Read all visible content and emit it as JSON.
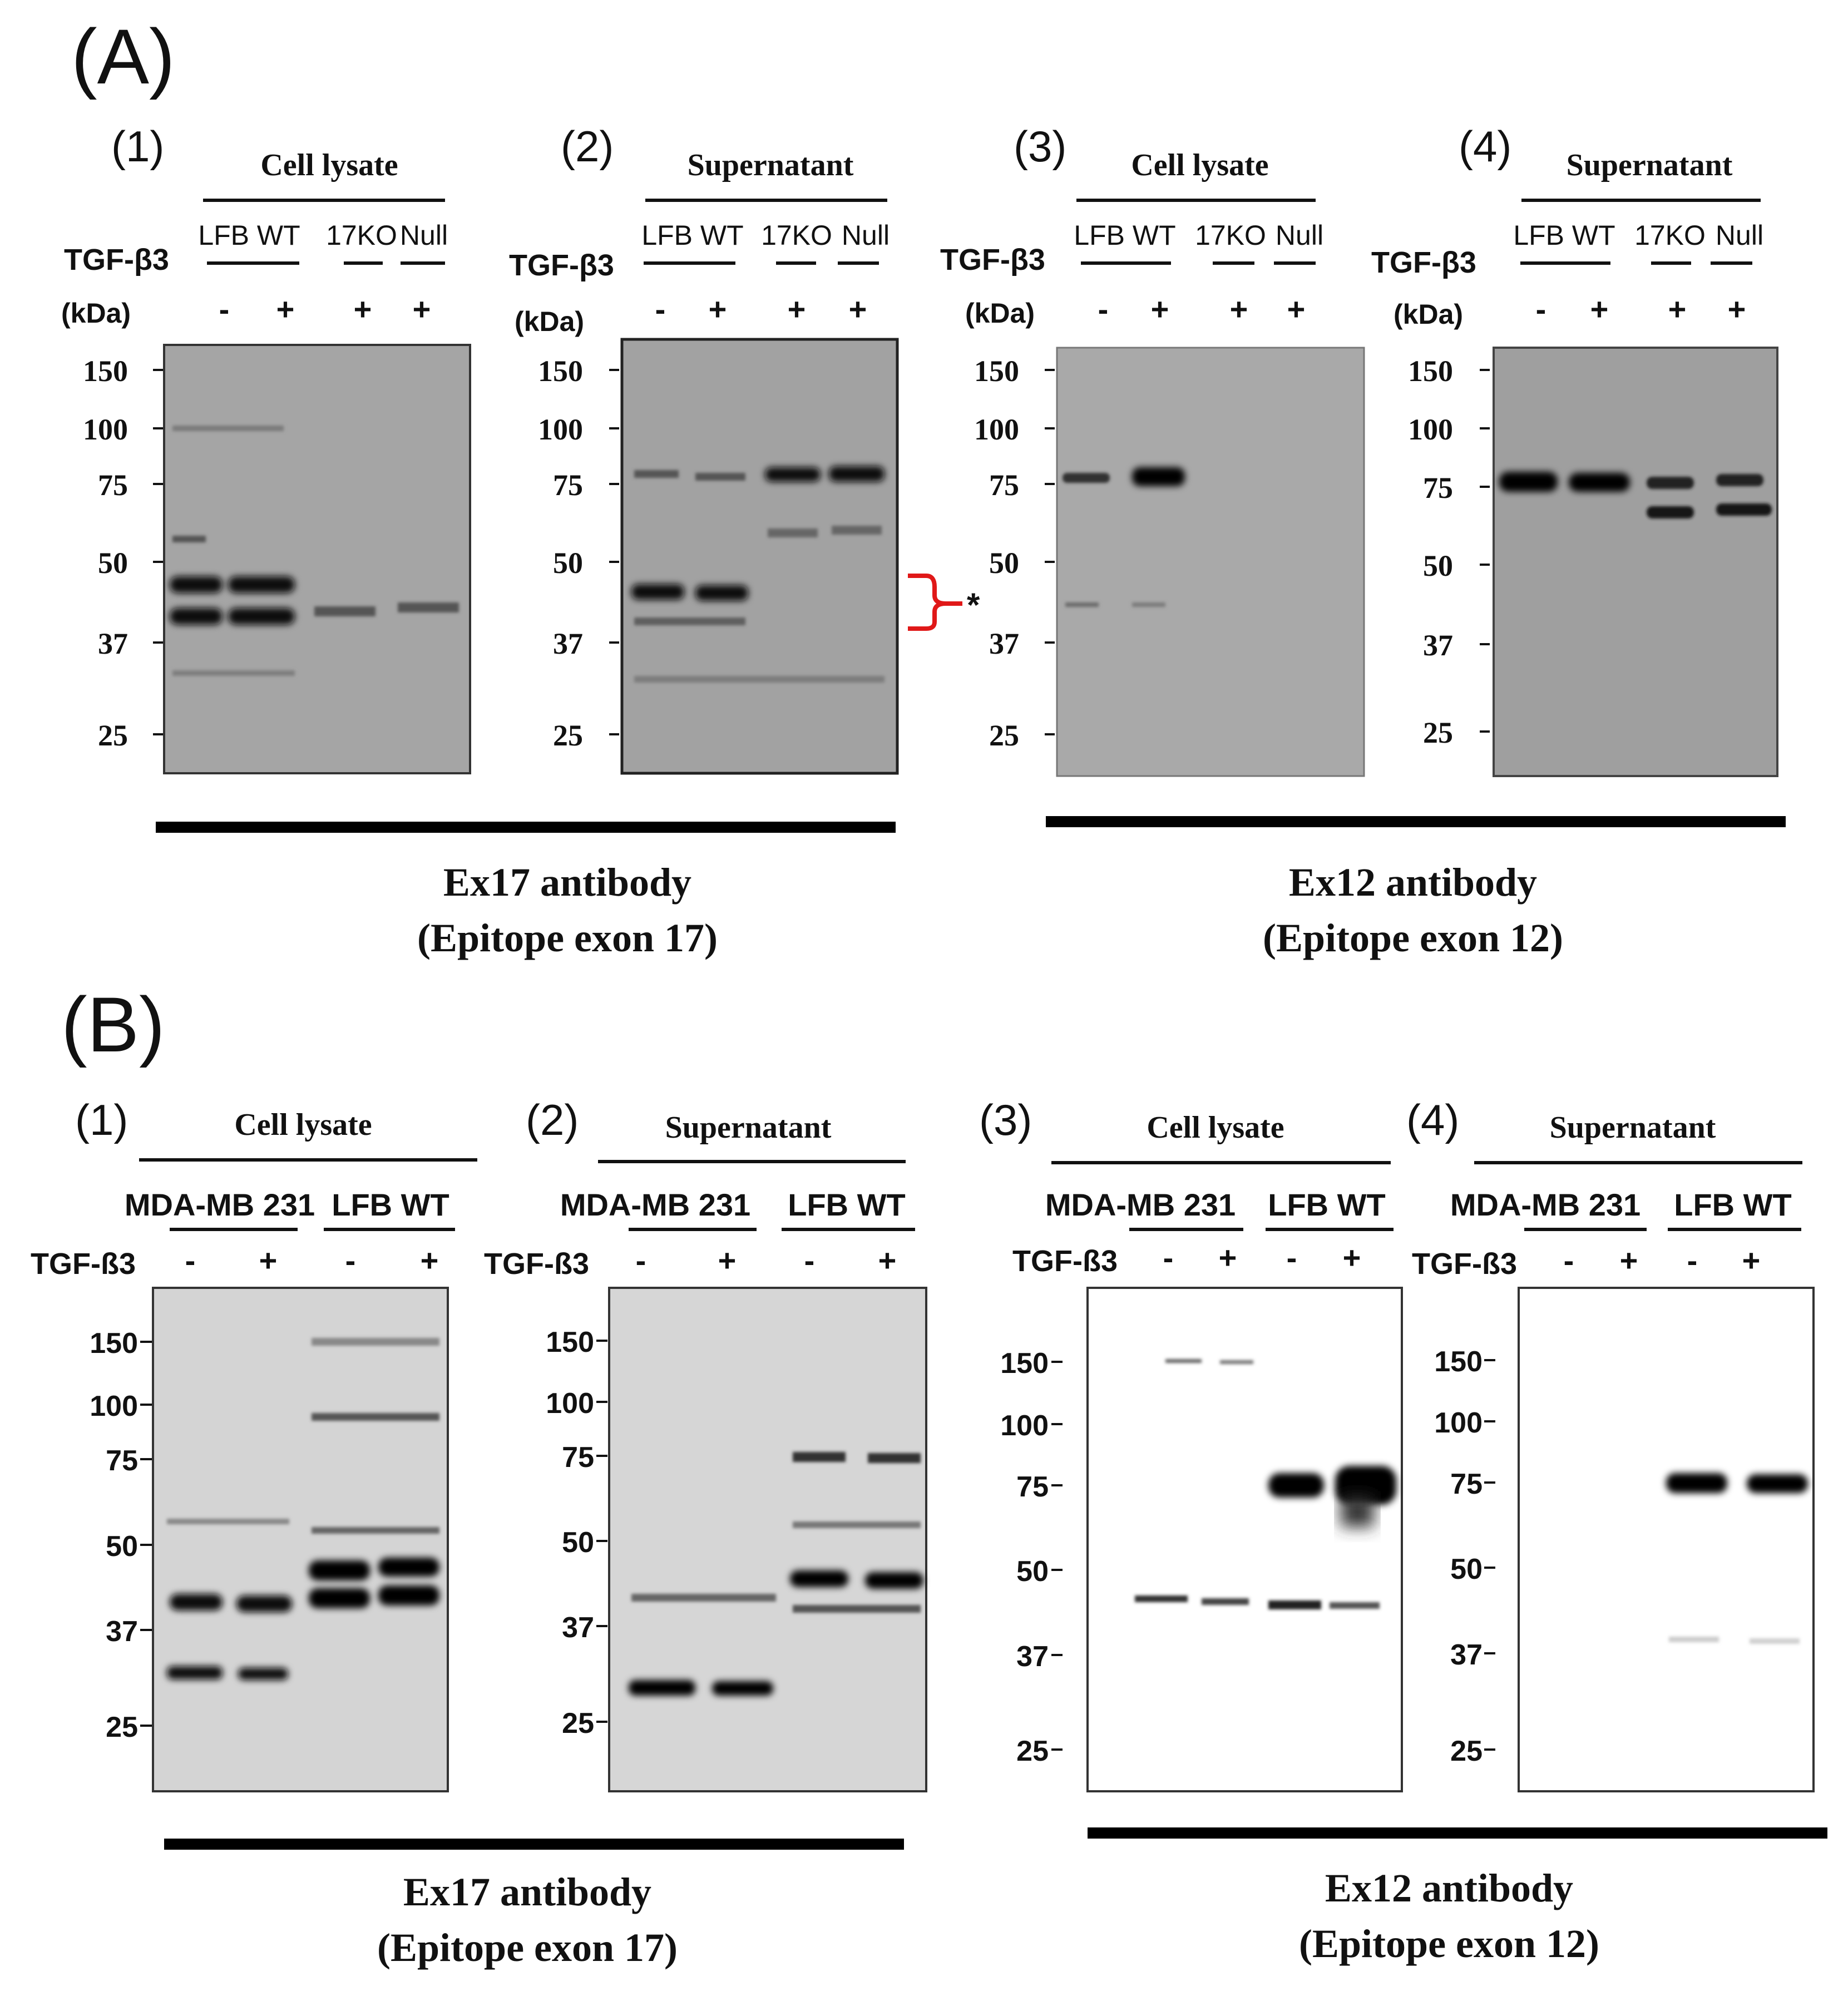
{
  "section_a": {
    "label": "(A)",
    "caption_left": [
      "Ex17 antibody",
      "(Epitope exon 17)"
    ],
    "caption_right": [
      "Ex12 antibody",
      "(Epitope exon 12)"
    ],
    "asterisk": "*",
    "panels": [
      {
        "number": "(1)",
        "title": "Cell lysate",
        "groups": [
          "LFB WT",
          "17KO",
          "Null"
        ],
        "treatment_label": "TGF-β3",
        "kda_label": "(kDa)",
        "signs": [
          "-",
          "+",
          "+",
          "+"
        ],
        "blot_tone": "#a5a5a5",
        "markers": [
          "150",
          "100",
          "75",
          "50",
          "37",
          "25"
        ]
      },
      {
        "number": "(2)",
        "title": "Supernatant",
        "groups": [
          "LFB WT",
          "17KO",
          "Null"
        ],
        "treatment_label": "TGF-β3",
        "kda_label": "(kDa)",
        "signs": [
          "-",
          "+",
          "+",
          "+"
        ],
        "blot_tone": "#a2a2a2",
        "markers": [
          "150",
          "100",
          "75",
          "50",
          "37",
          "25"
        ]
      },
      {
        "number": "(3)",
        "title": "Cell lysate",
        "groups": [
          "LFB WT",
          "17KO",
          "Null"
        ],
        "treatment_label": "TGF-β3",
        "kda_label": "(kDa)",
        "signs": [
          "-",
          "+",
          "+",
          "+"
        ],
        "blot_tone": "#a9a9a9",
        "markers": [
          "150",
          "100",
          "75",
          "50",
          "37",
          "25"
        ]
      },
      {
        "number": "(4)",
        "title": "Supernatant",
        "groups": [
          "LFB WT",
          "17KO",
          "Null"
        ],
        "treatment_label": "TGF-β3",
        "kda_label": "(kDa)",
        "signs": [
          "-",
          "+",
          "+",
          "+"
        ],
        "blot_tone": "#9f9f9f",
        "markers": [
          "150",
          "100",
          "75",
          "50",
          "37",
          "25"
        ]
      }
    ]
  },
  "section_b": {
    "label": "(B)",
    "caption_left": [
      "Ex17 antibody",
      "(Epitope exon 17)"
    ],
    "caption_right": [
      "Ex12 antibody",
      "(Epitope exon 12)"
    ],
    "panels": [
      {
        "number": "(1)",
        "title": "Cell lysate",
        "groups": [
          "MDA-MB 231",
          "LFB WT"
        ],
        "treatment_label": "TGF-ß3",
        "signs": [
          "-",
          "+",
          "-",
          "+"
        ],
        "blot_tone": "#d4d4d4",
        "markers": [
          "150",
          "100",
          "75",
          "50",
          "37",
          "25"
        ]
      },
      {
        "number": "(2)",
        "title": "Supernatant",
        "groups": [
          "MDA-MB 231",
          "LFB WT"
        ],
        "treatment_label": "TGF-ß3",
        "signs": [
          "-",
          "+",
          "-",
          "+"
        ],
        "blot_tone": "#d6d6d6",
        "markers": [
          "150",
          "100",
          "75",
          "50",
          "37",
          "25"
        ]
      },
      {
        "number": "(3)",
        "title": "Cell lysate",
        "groups": [
          "MDA-MB 231",
          "LFB WT"
        ],
        "treatment_label": "TGF-ß3",
        "signs": [
          "-",
          "+",
          "-",
          "+"
        ],
        "blot_tone": "#ffffff",
        "markers": [
          "150",
          "100",
          "75",
          "50",
          "37",
          "25"
        ]
      },
      {
        "number": "(4)",
        "title": "Supernatant",
        "groups": [
          "MDA-MB 231",
          "LFB WT"
        ],
        "treatment_label": "TGF-ß3",
        "signs": [
          "-",
          "+",
          "-",
          "+"
        ],
        "blot_tone": "#ffffff",
        "markers": [
          "150",
          "100",
          "75",
          "50",
          "37",
          "25"
        ]
      }
    ]
  }
}
